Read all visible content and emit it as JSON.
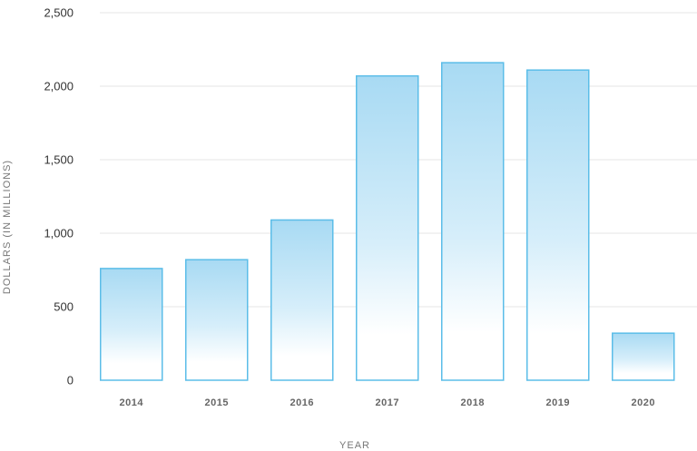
{
  "chart_data": {
    "type": "bar",
    "categories": [
      "2014",
      "2015",
      "2016",
      "2017",
      "2018",
      "2019",
      "2020"
    ],
    "values": [
      760,
      820,
      1090,
      2070,
      2160,
      2110,
      320
    ],
    "xlabel": "YEAR",
    "ylabel": "DOLLARS (IN MILLIONS)",
    "ylim": [
      0,
      2500
    ],
    "yticks": [
      0,
      500,
      1000,
      1500,
      2000,
      2500
    ],
    "ytick_labels": [
      "0",
      "500",
      "1,000",
      "1,500",
      "2,000",
      "2,500"
    ],
    "grid": true,
    "bar_stroke_color": "#5bbde8",
    "bar_fill_color": "#a8daf3"
  }
}
